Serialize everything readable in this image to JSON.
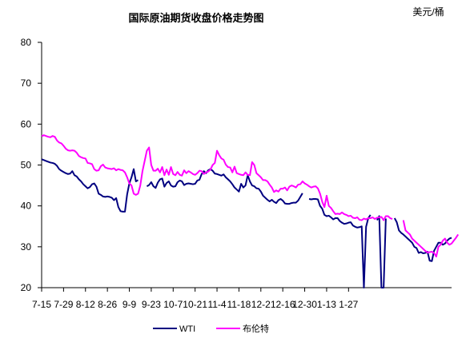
{
  "chart_data": {
    "type": "line",
    "title": "国际原油期货收盘价格走势图",
    "unit": "美元/桶",
    "ylim": [
      20,
      80
    ],
    "yticks": [
      20,
      30,
      40,
      50,
      60,
      70,
      80
    ],
    "x_tick_labels": [
      "7-15",
      "7-29",
      "8-12",
      "8-26",
      "9-9",
      "9-23",
      "10-7",
      "10-21",
      "11-4",
      "11-18",
      "12-2",
      "12-16",
      "12-30",
      "1-13",
      "1-27"
    ],
    "x_tick_index": [
      0,
      10,
      20,
      30,
      40,
      50,
      60,
      70,
      80,
      90,
      100,
      110,
      120,
      130,
      140
    ],
    "grid": false,
    "legend_position": "bottom",
    "colors": {
      "WTI": "#000080",
      "brent": "#ff00ff"
    },
    "series": [
      {
        "name": "WTI",
        "values": [
          51.4,
          51.2,
          51.0,
          50.8,
          50.6,
          50.5,
          50.3,
          49.8,
          49.0,
          48.6,
          48.3,
          48.0,
          47.8,
          47.9,
          48.5,
          47.5,
          47.2,
          46.5,
          46.0,
          45.3,
          44.8,
          44.3,
          44.6,
          45.3,
          45.5,
          44.7,
          43.0,
          42.7,
          42.3,
          42.2,
          42.3,
          42.2,
          42.0,
          41.4,
          41.9,
          39.7,
          38.7,
          38.6,
          38.6,
          42.8,
          45.5,
          47.0,
          49.0,
          46.0,
          46.3,
          null,
          46.8,
          null,
          44.8,
          45.1,
          45.8,
          44.8,
          44.4,
          45.7,
          46.5,
          46.7,
          44.7,
          45.6,
          46.0,
          45.0,
          44.7,
          44.8,
          45.8,
          46.2,
          46.0,
          45.1,
          45.4,
          45.5,
          45.4,
          45.3,
          45.4,
          46.2,
          46.4,
          47.8,
          48.5,
          48.0,
          48.7,
          49.0,
          48.6,
          47.9,
          47.8,
          47.6,
          47.4,
          47.7,
          47.0,
          46.5,
          46.0,
          45.3,
          44.5,
          44.0,
          43.5,
          45.4,
          44.5,
          45.0,
          47.5,
          46.0,
          45.0,
          44.8,
          44.3,
          44.2,
          43.5,
          42.5,
          42.0,
          41.5,
          41.1,
          41.5,
          41.0,
          40.7,
          41.4,
          41.7,
          41.3,
          40.6,
          40.5,
          40.5,
          40.7,
          40.8,
          40.8,
          41.3,
          42.2,
          43.1,
          null,
          null,
          41.7,
          41.6,
          41.7,
          41.7,
          41.6,
          40.0,
          39.3,
          37.8,
          37.5,
          37.6,
          37.2,
          36.7,
          37.0,
          37.0,
          36.3,
          35.9,
          35.6,
          35.7,
          35.9,
          36.0,
          35.2,
          34.9,
          34.7,
          34.8,
          35.0,
          20.0,
          34.9,
          37.0,
          37.8,
          null,
          null,
          36.5,
          37.5,
          20.0,
          20.0,
          36.9,
          null,
          null,
          null,
          37.0,
          36.0,
          34.0,
          33.4,
          33.0,
          32.5,
          32.0,
          31.5,
          31.0,
          30.0,
          29.7,
          28.5,
          28.7,
          28.4,
          28.5,
          28.8,
          26.6,
          26.5,
          29.0,
          30.0,
          31.0,
          31.0,
          30.5,
          30.8,
          31.5,
          32.0,
          32.2
        ]
      },
      {
        "name": "布伦特",
        "values": [
          57.0,
          57.3,
          57.1,
          56.9,
          56.8,
          57.1,
          56.9,
          56.0,
          55.5,
          55.3,
          54.7,
          54.0,
          53.6,
          53.5,
          53.6,
          53.5,
          53.0,
          52.2,
          51.9,
          51.7,
          51.6,
          50.5,
          50.4,
          50.2,
          49.0,
          48.6,
          48.7,
          49.7,
          50.1,
          49.4,
          49.2,
          49.1,
          49.0,
          49.2,
          48.7,
          49.0,
          48.8,
          48.7,
          48.2,
          47.0,
          45.5,
          45.0,
          43.0,
          42.7,
          43.0,
          45.0,
          48.5,
          51.0,
          53.5,
          54.3,
          50.0,
          48.6,
          48.6,
          49.1,
          48.2,
          49.5,
          47.5,
          48.9,
          47.6,
          49.5,
          47.8,
          47.5,
          48.3,
          47.6,
          47.4,
          48.7,
          48.0,
          48.5,
          48.2,
          47.8,
          47.6,
          48.0,
          48.6,
          48.5,
          47.8,
          48.2,
          48.4,
          48.9,
          50.0,
          50.5,
          53.5,
          52.4,
          51.6,
          51.3,
          50.1,
          49.5,
          49.4,
          48.2,
          49.6,
          48.0,
          47.8,
          47.6,
          47.5,
          48.2,
          47.6,
          47.5,
          50.7,
          50.0,
          48.0,
          47.5,
          47.0,
          46.3,
          46.3,
          46.0,
          45.2,
          44.5,
          43.4,
          43.8,
          43.5,
          44.2,
          44.2,
          44.5,
          43.8,
          44.7,
          45.0,
          44.8,
          44.5,
          45.2,
          45.3,
          46.0,
          45.5,
          45.2,
          44.8,
          44.5,
          44.7,
          44.8,
          44.3,
          43.0,
          41.0,
          39.7,
          42.5,
          40.0,
          39.5,
          38.7,
          38.0,
          38.1,
          38.0,
          38.4,
          38.0,
          37.8,
          37.5,
          37.6,
          37.1,
          37.0,
          37.2,
          36.6,
          36.5,
          36.9,
          36.7,
          37.0,
          37.0,
          37.2,
          36.8,
          37.1,
          37.2,
          37.3,
          36.5,
          37.5,
          37.5,
          37.0,
          36.8,
          null,
          null,
          null,
          null,
          36.5,
          34.0,
          33.5,
          33.0,
          32.0,
          31.5,
          31.0,
          30.5,
          30.0,
          29.5,
          29.0,
          28.6,
          28.7,
          28.8,
          28.5,
          27.6,
          30.0,
          30.5,
          31.5,
          32.0,
          31.0,
          30.5,
          30.8,
          31.5,
          32.2,
          33.0
        ]
      }
    ]
  }
}
